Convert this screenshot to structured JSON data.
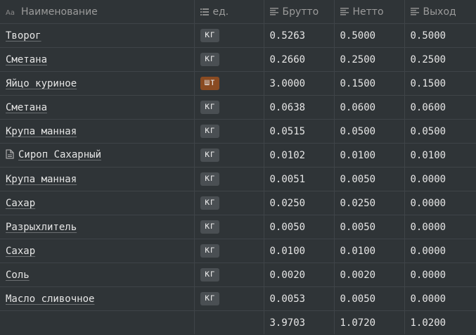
{
  "headers": {
    "name": "Наименование",
    "unit": "ед.",
    "brutto": "Брутто",
    "netto": "Нетто",
    "output": "Выход"
  },
  "header_icons": {
    "name": "text-type-icon",
    "unit": "list-icon",
    "brutto": "number-lines-icon",
    "netto": "number-lines-icon",
    "output": "number-lines-icon"
  },
  "colors": {
    "background": "#2f3437",
    "badge_kg": "#4a4f53",
    "badge_sht": "#8a4b22"
  },
  "rows": [
    {
      "name": "Творог",
      "unit": "кг",
      "brutto": "0.5263",
      "netto": "0.5000",
      "output": "0.5000",
      "doc": false
    },
    {
      "name": "Сметана",
      "unit": "кг",
      "brutto": "0.2660",
      "netto": "0.2500",
      "output": "0.2500",
      "doc": false
    },
    {
      "name": "Яйцо куриное",
      "unit": "шт",
      "brutto": "3.0000",
      "netto": "0.1500",
      "output": "0.1500",
      "doc": false
    },
    {
      "name": "Сметана",
      "unit": "кг",
      "brutto": "0.0638",
      "netto": "0.0600",
      "output": "0.0600",
      "doc": false
    },
    {
      "name": "Крупа манная",
      "unit": "кг",
      "brutto": "0.0515",
      "netto": "0.0500",
      "output": "0.0500",
      "doc": false
    },
    {
      "name": "Сироп Сахарный",
      "unit": "кг",
      "brutto": "0.0102",
      "netto": "0.0100",
      "output": "0.0100",
      "doc": true
    },
    {
      "name": "Крупа манная",
      "unit": "кг",
      "brutto": "0.0051",
      "netto": "0.0050",
      "output": "0.0000",
      "doc": false
    },
    {
      "name": "Сахар",
      "unit": "кг",
      "brutto": "0.0250",
      "netto": "0.0250",
      "output": "0.0000",
      "doc": false
    },
    {
      "name": "Разрыхлитель",
      "unit": "кг",
      "brutto": "0.0050",
      "netto": "0.0050",
      "output": "0.0000",
      "doc": false
    },
    {
      "name": "Сахар",
      "unit": "кг",
      "brutto": "0.0100",
      "netto": "0.0100",
      "output": "0.0000",
      "doc": false
    },
    {
      "name": "Соль",
      "unit": "кг",
      "brutto": "0.0020",
      "netto": "0.0020",
      "output": "0.0000",
      "doc": false
    },
    {
      "name": "Масло сливочное",
      "unit": "кг",
      "brutto": "0.0053",
      "netto": "0.0050",
      "output": "0.0000",
      "doc": false
    }
  ],
  "totals": {
    "brutto": "3.9703",
    "netto": "1.0720",
    "output": "1.0200"
  }
}
